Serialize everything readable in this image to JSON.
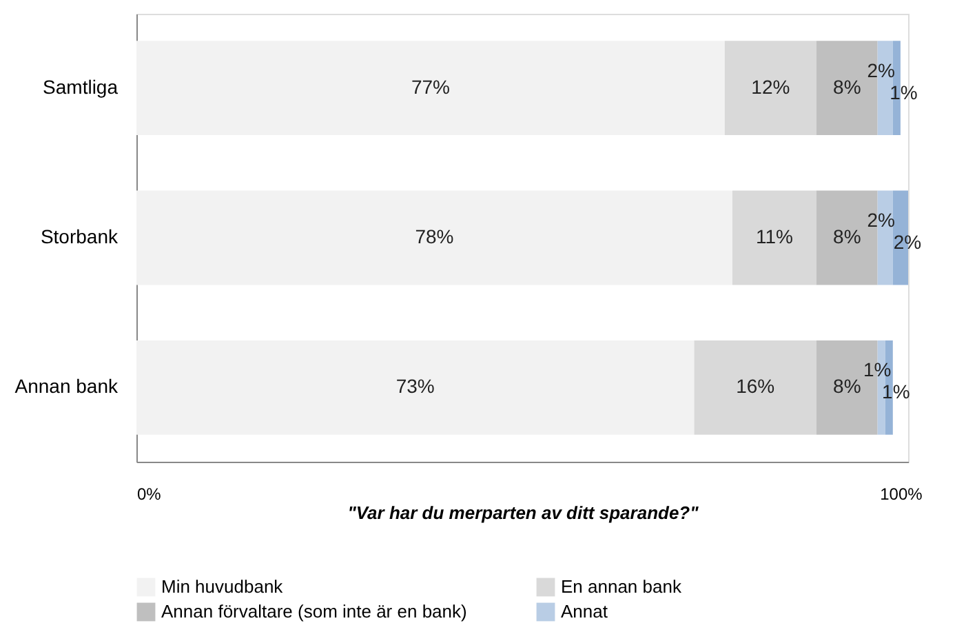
{
  "chart_data": {
    "type": "bar",
    "orientation": "horizontal",
    "stacked": true,
    "xlabel": "\"Var har du merparten av ditt sparande?\"",
    "categories": [
      "Samtliga",
      "Storbank",
      "Annan bank"
    ],
    "series": [
      {
        "name": "Min huvudbank",
        "color": "#f2f2f2",
        "values": [
          77,
          78,
          73
        ],
        "value_labels": [
          "77%",
          "78%",
          "73%"
        ]
      },
      {
        "name": "En annan bank",
        "color": "#d9d9d9",
        "values": [
          12,
          11,
          16
        ],
        "value_labels": [
          "12%",
          "11%",
          "16%"
        ]
      },
      {
        "name": "Annan förvaltare (som inte är en bank)",
        "color": "#bfbfbf",
        "values": [
          8,
          8,
          8
        ],
        "value_labels": [
          "8%",
          "8%",
          "8%"
        ]
      },
      {
        "name": "Annat",
        "color": "#b9cde5",
        "values": [
          2,
          2,
          1
        ],
        "value_labels": [
          "2%",
          "2%",
          "1%"
        ]
      },
      {
        "color": "#95b3d7",
        "values": [
          1,
          2,
          1
        ],
        "value_labels": [
          "1%",
          "2%",
          "1%"
        ]
      }
    ],
    "xlim": [
      0,
      101
    ],
    "xticks": [
      {
        "value": 0,
        "label": "0%"
      },
      {
        "value": 100,
        "label": "100%"
      }
    ],
    "grid": false,
    "legend": "bottom"
  }
}
